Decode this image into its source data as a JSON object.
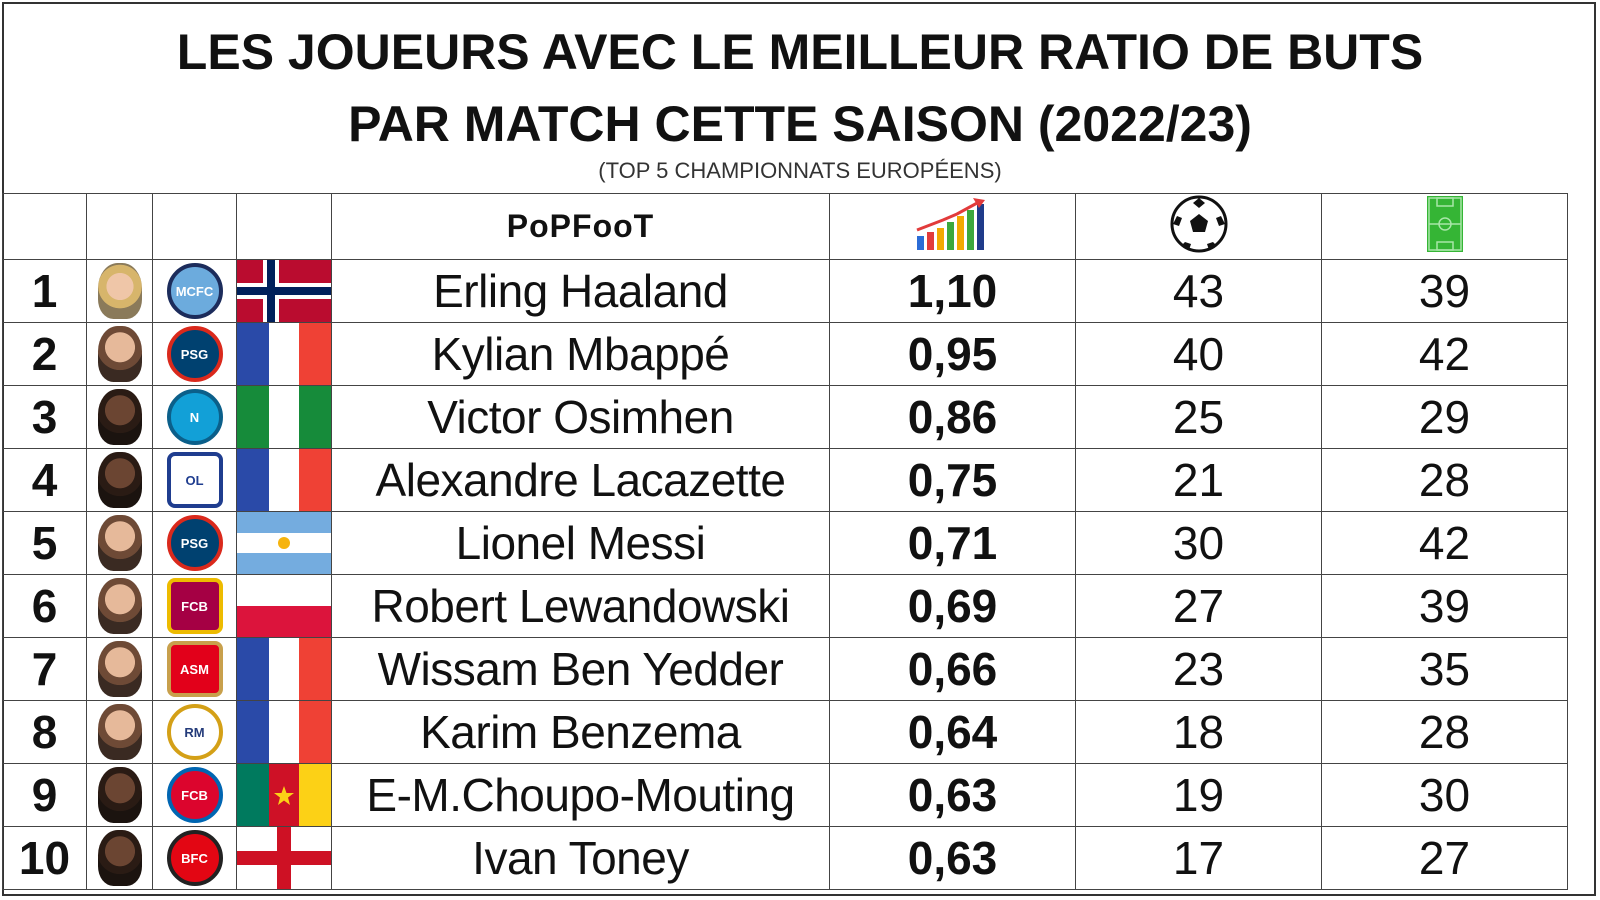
{
  "title_line1": "LES JOUEURS AVEC LE MEILLEUR RATIO DE BUTS",
  "title_line2": "PAR MATCH CETTE SAISON (2022/23)",
  "subtitle": "(TOP 5 CHAMPIONNATS EUROPÉENS)",
  "header": {
    "logo": "PoPFooT",
    "ratio_icon": "bar-chart-trend-icon",
    "goals_icon": "soccer-ball-icon",
    "matches_icon": "football-pitch-icon"
  },
  "rows": [
    {
      "rank": "1",
      "name": "Erling Haaland",
      "ratio": "1,10",
      "goals": "43",
      "matches": "39",
      "club_icon": "manchester-city-crest-icon",
      "flag": "norway"
    },
    {
      "rank": "2",
      "name": "Kylian Mbappé",
      "ratio": "0,95",
      "goals": "40",
      "matches": "42",
      "club_icon": "psg-crest-icon",
      "flag": "france"
    },
    {
      "rank": "3",
      "name": "Victor Osimhen",
      "ratio": "0,86",
      "goals": "25",
      "matches": "29",
      "club_icon": "napoli-crest-icon",
      "flag": "nigeria"
    },
    {
      "rank": "4",
      "name": "Alexandre Lacazette",
      "ratio": "0,75",
      "goals": "21",
      "matches": "28",
      "club_icon": "olympique-lyonnais-crest-icon",
      "flag": "france"
    },
    {
      "rank": "5",
      "name": "Lionel Messi",
      "ratio": "0,71",
      "goals": "30",
      "matches": "42",
      "club_icon": "psg-crest-icon",
      "flag": "argentina"
    },
    {
      "rank": "6",
      "name": "Robert Lewandowski",
      "ratio": "0,69",
      "goals": "27",
      "matches": "39",
      "club_icon": "fc-barcelona-crest-icon",
      "flag": "poland"
    },
    {
      "rank": "7",
      "name": "Wissam Ben Yedder",
      "ratio": "0,66",
      "goals": "23",
      "matches": "35",
      "club_icon": "as-monaco-crest-icon",
      "flag": "france"
    },
    {
      "rank": "8",
      "name": "Karim Benzema",
      "ratio": "0,64",
      "goals": "18",
      "matches": "28",
      "club_icon": "real-madrid-crest-icon",
      "flag": "france"
    },
    {
      "rank": "9",
      "name": "E-M.Choupo-Mouting",
      "ratio": "0,63",
      "goals": "19",
      "matches": "30",
      "club_icon": "bayern-munchen-crest-icon",
      "flag": "cameroon"
    },
    {
      "rank": "10",
      "name": "Ivan Toney",
      "ratio": "0,63",
      "goals": "17",
      "matches": "27",
      "club_icon": "brentford-crest-icon",
      "flag": "england"
    }
  ]
}
